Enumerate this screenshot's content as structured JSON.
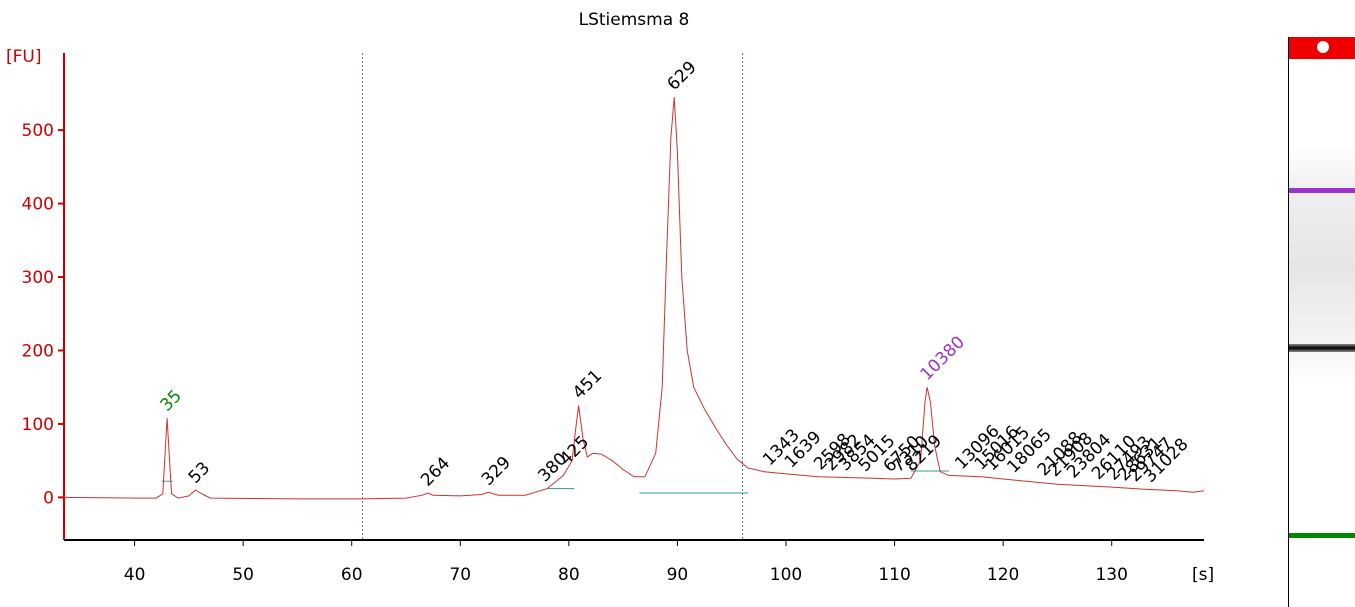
{
  "chart_data": {
    "type": "line",
    "title": "LStiemsma 8",
    "ylabel": "[FU]",
    "xlabel": "[s]",
    "xlim": [
      33.5,
      138.5
    ],
    "ylim": [
      -58,
      605
    ],
    "xticks": [
      40,
      50,
      60,
      70,
      80,
      90,
      100,
      110,
      120,
      130
    ],
    "yticks": [
      0,
      100,
      200,
      300,
      400,
      500
    ],
    "colors": {
      "trace": "#cc3333",
      "axis": "#cc0000",
      "lower_marker": "#008800",
      "upper_marker": "#9933cc",
      "baseline": "#339999",
      "region_line": "#6666aa"
    },
    "region_boundaries": [
      61,
      96
    ],
    "series": [
      {
        "points": [
          [
            33.5,
            0
          ],
          [
            40,
            -1
          ],
          [
            42,
            -1
          ],
          [
            42.6,
            5
          ],
          [
            43.0,
            108
          ],
          [
            43.4,
            5
          ],
          [
            44,
            -1
          ],
          [
            45.0,
            2
          ],
          [
            45.6,
            10
          ],
          [
            46.3,
            4
          ],
          [
            47,
            -1
          ],
          [
            55,
            -2
          ],
          [
            61,
            -2
          ],
          [
            65,
            -1
          ],
          [
            66.5,
            3
          ],
          [
            67.0,
            6
          ],
          [
            67.5,
            3
          ],
          [
            70,
            2
          ],
          [
            72,
            4
          ],
          [
            72.6,
            7
          ],
          [
            73.5,
            3
          ],
          [
            76,
            3
          ],
          [
            78,
            12
          ],
          [
            79.5,
            30
          ],
          [
            80.3,
            50
          ],
          [
            80.6,
            90
          ],
          [
            80.9,
            125
          ],
          [
            81.3,
            80
          ],
          [
            81.7,
            55
          ],
          [
            82.2,
            60
          ],
          [
            83,
            59
          ],
          [
            84,
            50
          ],
          [
            85,
            38
          ],
          [
            86,
            28
          ],
          [
            87,
            28
          ],
          [
            88,
            60
          ],
          [
            88.6,
            150
          ],
          [
            89.0,
            330
          ],
          [
            89.4,
            490
          ],
          [
            89.7,
            545
          ],
          [
            90.0,
            470
          ],
          [
            90.4,
            300
          ],
          [
            90.9,
            200
          ],
          [
            91.5,
            150
          ],
          [
            92.5,
            120
          ],
          [
            93.5,
            95
          ],
          [
            94.5,
            72
          ],
          [
            95.5,
            52
          ],
          [
            96.5,
            40
          ],
          [
            98,
            35
          ],
          [
            100,
            32
          ],
          [
            103,
            28
          ],
          [
            106,
            27
          ],
          [
            108,
            26
          ],
          [
            110,
            25
          ],
          [
            111.5,
            26
          ],
          [
            112.4,
            50
          ],
          [
            112.8,
            130
          ],
          [
            113.0,
            150
          ],
          [
            113.3,
            130
          ],
          [
            113.7,
            70
          ],
          [
            114.2,
            35
          ],
          [
            115,
            30
          ],
          [
            118,
            28
          ],
          [
            120,
            25
          ],
          [
            125,
            18
          ],
          [
            130,
            14
          ],
          [
            133,
            11
          ],
          [
            136,
            9
          ],
          [
            137.5,
            7
          ],
          [
            138.5,
            9
          ]
        ]
      }
    ],
    "peaks": [
      {
        "x": 43.0,
        "y": 108,
        "label": "35",
        "color": "#008800"
      },
      {
        "x": 45.6,
        "y": 10,
        "label": "53",
        "color": "#000000"
      },
      {
        "x": 67.0,
        "y": 6,
        "label": "264",
        "color": "#000000"
      },
      {
        "x": 72.6,
        "y": 7,
        "label": "329",
        "color": "#000000"
      },
      {
        "x": 77.8,
        "y": 12,
        "label": "380",
        "color": "#000000"
      },
      {
        "x": 79.8,
        "y": 35,
        "label": "425",
        "color": "#000000"
      },
      {
        "x": 81.0,
        "y": 125,
        "label": "451",
        "color": "#000000"
      },
      {
        "x": 89.7,
        "y": 545,
        "label": "629",
        "color": "#000000"
      },
      {
        "x": 98.5,
        "y": 34,
        "label": "1343",
        "color": "#000000"
      },
      {
        "x": 100.5,
        "y": 31,
        "label": "1639",
        "color": "#000000"
      },
      {
        "x": 103.2,
        "y": 28,
        "label": "2598",
        "color": "#000000"
      },
      {
        "x": 104.2,
        "y": 27,
        "label": "2982",
        "color": "#000000"
      },
      {
        "x": 105.5,
        "y": 27,
        "label": "3854",
        "color": "#000000"
      },
      {
        "x": 107.3,
        "y": 26,
        "label": "5015",
        "color": "#000000"
      },
      {
        "x": 109.6,
        "y": 25,
        "label": "6750",
        "color": "#000000"
      },
      {
        "x": 110.4,
        "y": 25,
        "label": "7310",
        "color": "#000000"
      },
      {
        "x": 111.6,
        "y": 26,
        "label": "8219",
        "color": "#000000"
      },
      {
        "x": 113.0,
        "y": 150,
        "label": "10380",
        "color": "#9933cc"
      },
      {
        "x": 116.2,
        "y": 29,
        "label": "13096",
        "color": "#000000"
      },
      {
        "x": 118.0,
        "y": 28,
        "label": "15016",
        "color": "#000000"
      },
      {
        "x": 119.0,
        "y": 27,
        "label": "16015",
        "color": "#000000"
      },
      {
        "x": 121.0,
        "y": 24,
        "label": "18065",
        "color": "#000000"
      },
      {
        "x": 123.8,
        "y": 20,
        "label": "21088",
        "color": "#000000"
      },
      {
        "x": 124.8,
        "y": 19,
        "label": "21908",
        "color": "#000000"
      },
      {
        "x": 126.5,
        "y": 17,
        "label": "23804",
        "color": "#000000"
      },
      {
        "x": 128.8,
        "y": 15,
        "label": "26110",
        "color": "#000000"
      },
      {
        "x": 130.2,
        "y": 14,
        "label": "27493",
        "color": "#000000"
      },
      {
        "x": 131.2,
        "y": 13,
        "label": "28631",
        "color": "#000000"
      },
      {
        "x": 132.2,
        "y": 12,
        "label": "29747",
        "color": "#000000"
      },
      {
        "x": 133.6,
        "y": 11,
        "label": "31028",
        "color": "#000000"
      }
    ],
    "gel_bands": [
      {
        "position": 0.27,
        "color": "#9933cc",
        "kind": "upper marker"
      },
      {
        "position": 0.545,
        "color": "#000000",
        "kind": "main band"
      },
      {
        "position": 0.875,
        "color": "#008800",
        "kind": "lower marker"
      }
    ]
  }
}
